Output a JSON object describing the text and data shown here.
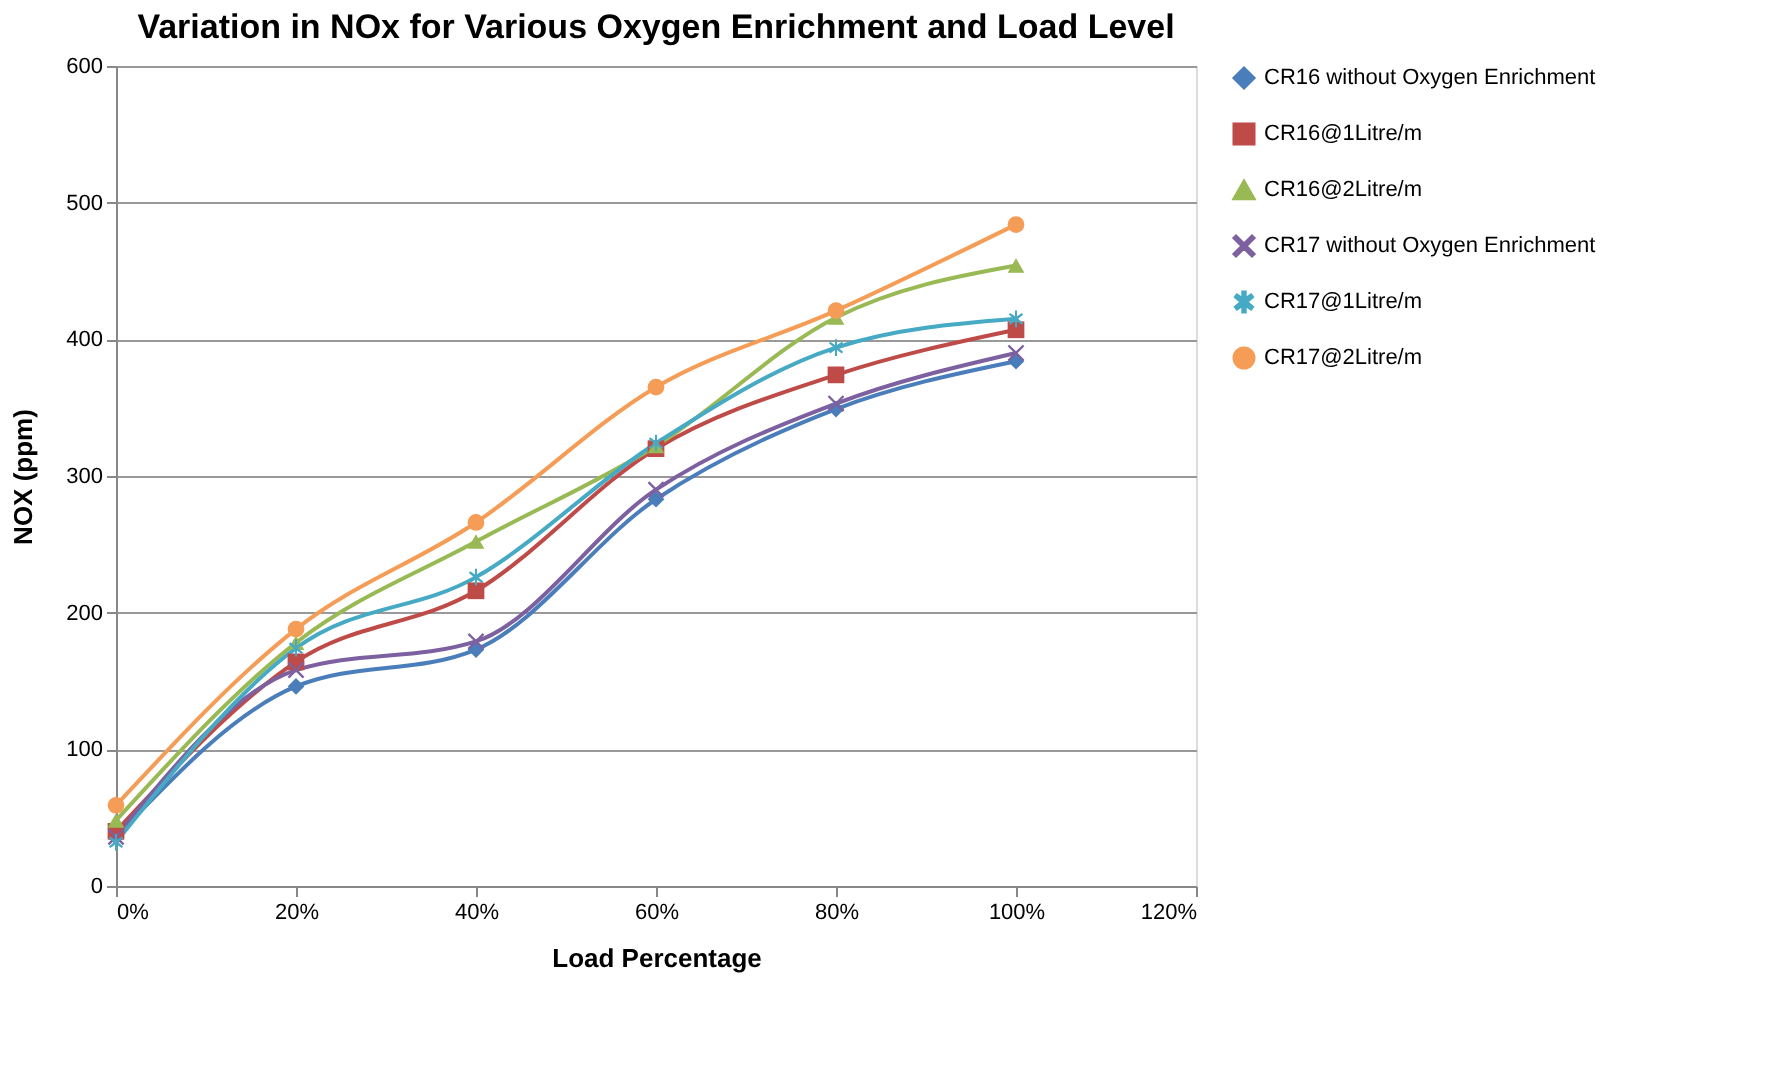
{
  "chart_data": {
    "type": "line",
    "title": "Variation in NOx for Various Oxygen Enrichment and Load Level",
    "xlabel": "Load Percentage",
    "ylabel": "NOX (ppm)",
    "x": [
      0,
      20,
      40,
      60,
      80,
      100
    ],
    "xlim": [
      0,
      120
    ],
    "xticks": [
      {
        "value": 0,
        "label": "0%"
      },
      {
        "value": 20,
        "label": "20%"
      },
      {
        "value": 40,
        "label": "40%"
      },
      {
        "value": 60,
        "label": "60%"
      },
      {
        "value": 80,
        "label": "80%"
      },
      {
        "value": 100,
        "label": "100%"
      },
      {
        "value": 120,
        "label": "120%"
      }
    ],
    "ylim": [
      0,
      600
    ],
    "yticks": [
      0,
      100,
      200,
      300,
      400,
      500,
      600
    ],
    "grid": "y",
    "legend": "right",
    "series": [
      {
        "name": "CR16 without Oxygen Enrichment",
        "color": "#4a7ebb",
        "marker": "diamond",
        "values": [
          36,
          146,
          173,
          283,
          349,
          384
        ]
      },
      {
        "name": "CR16@1Litre/m",
        "color": "#be4b48",
        "marker": "square",
        "values": [
          40,
          164,
          216,
          320,
          374,
          407
        ]
      },
      {
        "name": "CR16@2Litre/m",
        "color": "#98b954",
        "marker": "triangle",
        "values": [
          48,
          178,
          252,
          322,
          416,
          454
        ]
      },
      {
        "name": "CR17 without Oxygen Enrichment",
        "color": "#7d60a0",
        "marker": "cross",
        "values": [
          36,
          158,
          179,
          290,
          353,
          390
        ]
      },
      {
        "name": "CR17@1Litre/m",
        "color": "#46aac5",
        "marker": "star",
        "values": [
          32,
          174,
          226,
          324,
          394,
          415
        ]
      },
      {
        "name": "CR17@2Litre/m",
        "color": "#f59d56",
        "marker": "circle",
        "values": [
          59,
          188,
          266,
          365,
          421,
          484
        ]
      }
    ]
  }
}
